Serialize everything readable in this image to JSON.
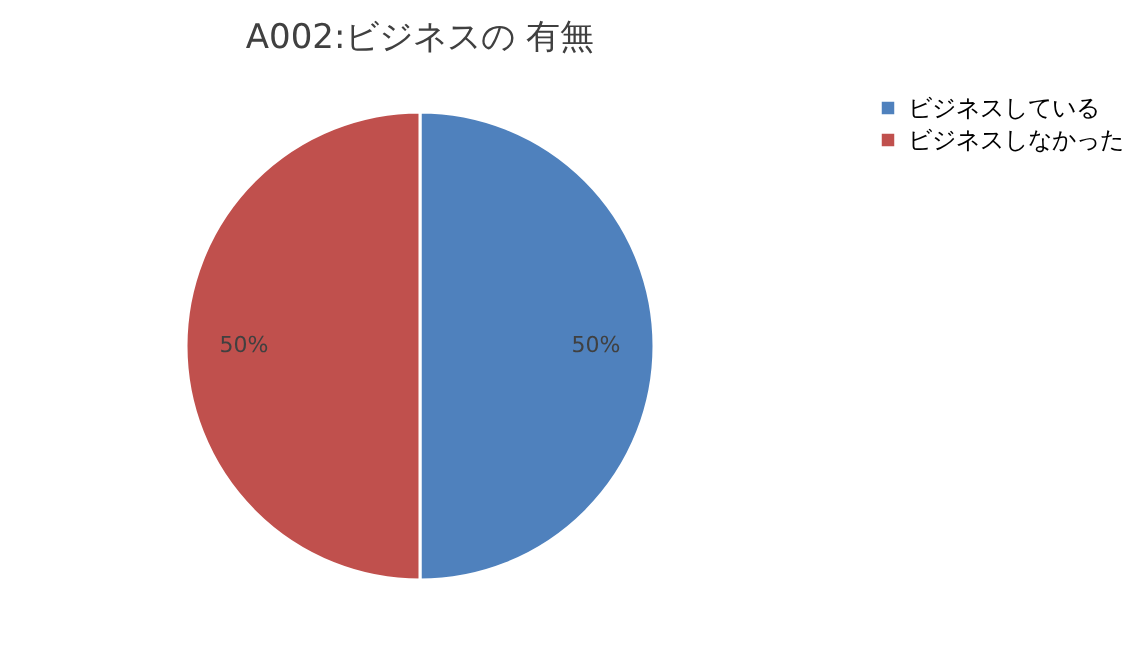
{
  "chart_data": {
    "type": "pie",
    "title": "A002:ビジネスの 有無",
    "categories": [
      "ビジネスしている",
      "ビジネスしなかった"
    ],
    "values": [
      50,
      50
    ],
    "colors": [
      "#4f81bd",
      "#c0504d"
    ],
    "value_labels": [
      "50%",
      "50%"
    ],
    "legend": "right"
  }
}
